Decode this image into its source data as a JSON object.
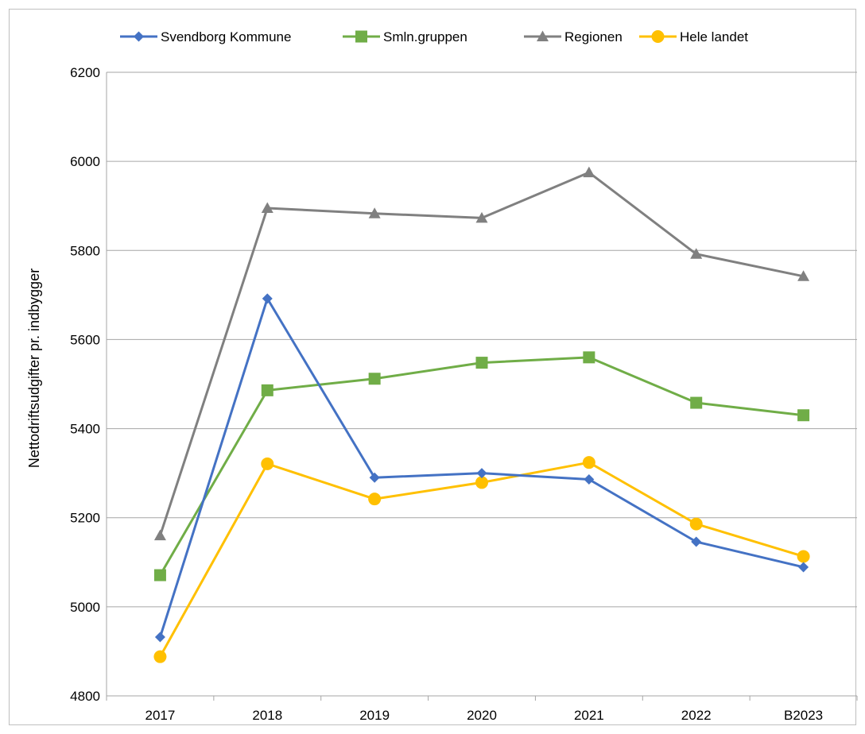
{
  "chart_data": {
    "type": "line",
    "title": "",
    "xlabel": "",
    "ylabel": "Nettodriftsudgifter pr. indbygger",
    "categories": [
      "2017",
      "2018",
      "2019",
      "2020",
      "2021",
      "2022",
      "B2023"
    ],
    "ylim": [
      4800,
      6200
    ],
    "yticks": [
      "4800",
      "5000",
      "5200",
      "5400",
      "5600",
      "5800",
      "6000",
      "6200"
    ],
    "grid": "horizontal",
    "legend_position": "top",
    "series": [
      {
        "name": "Svendborg Kommune",
        "color": "#4472c4",
        "marker": "diamond",
        "values": [
          4932,
          5692,
          5290,
          5300,
          5286,
          5146,
          5089
        ]
      },
      {
        "name": "Smln.gruppen",
        "color": "#70ad47",
        "marker": "square",
        "values": [
          5071,
          5486,
          5512,
          5548,
          5560,
          5458,
          5430
        ]
      },
      {
        "name": "Regionen",
        "color": "#808080",
        "marker": "triangle",
        "values": [
          5160,
          5895,
          5883,
          5873,
          5975,
          5792,
          5742
        ]
      },
      {
        "name": "Hele landet",
        "color": "#ffc000",
        "marker": "circle",
        "values": [
          4888,
          5321,
          5242,
          5279,
          5324,
          5186,
          5113
        ]
      }
    ]
  }
}
